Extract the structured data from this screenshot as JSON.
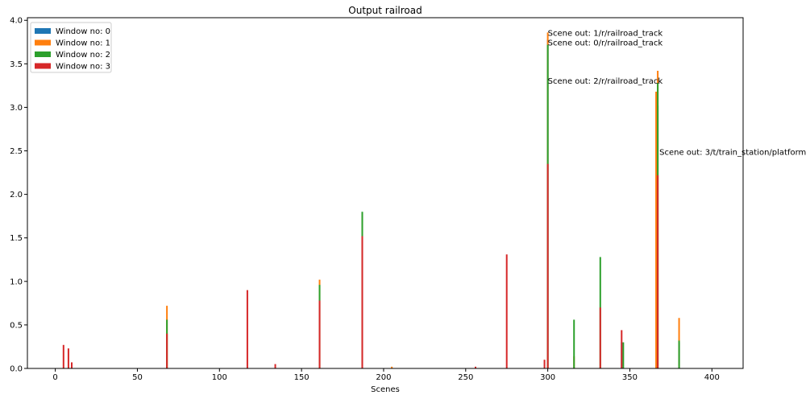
{
  "chart_data": {
    "type": "bar",
    "stacked": false,
    "title": "Output railroad",
    "xlabel": "Scenes",
    "ylabel": "",
    "xlim": [
      -17,
      419
    ],
    "ylim": [
      0,
      4.03
    ],
    "xticks": [
      0,
      50,
      100,
      150,
      200,
      250,
      300,
      350,
      400
    ],
    "yticks": [
      0.0,
      0.5,
      1.0,
      1.5,
      2.0,
      2.5,
      3.0,
      3.5,
      4.0
    ],
    "ytick_labels": [
      "0.0",
      "0.5",
      "1.0",
      "1.5",
      "2.0",
      "2.5",
      "3.0",
      "3.5",
      "4.0"
    ],
    "legend_position": "upper-left",
    "grid": false,
    "series": [
      {
        "name": "Window no: 0",
        "color": "#1f77b4",
        "points": [
          [
            300,
            3.78
          ],
          [
            367,
            3.02
          ],
          [
            345,
            0.3
          ],
          [
            380,
            0.3
          ]
        ]
      },
      {
        "name": "Window no: 1",
        "color": "#ff7f0e",
        "points": [
          [
            68,
            0.72
          ],
          [
            161,
            1.02
          ],
          [
            205,
            0.02
          ],
          [
            300,
            3.86
          ],
          [
            367,
            3.42
          ],
          [
            366,
            3.18
          ],
          [
            380,
            0.58
          ],
          [
            316,
            0.14
          ],
          [
            187,
            1.78
          ]
        ]
      },
      {
        "name": "Window no: 2",
        "color": "#2ca02c",
        "points": [
          [
            68,
            0.56
          ],
          [
            161,
            0.96
          ],
          [
            187,
            1.8
          ],
          [
            300,
            3.72
          ],
          [
            316,
            0.56
          ],
          [
            332,
            1.28
          ],
          [
            346,
            0.3
          ],
          [
            367,
            3.28
          ],
          [
            380,
            0.32
          ]
        ]
      },
      {
        "name": "Window no: 3",
        "color": "#d62728",
        "points": [
          [
            5,
            0.27
          ],
          [
            8,
            0.23
          ],
          [
            10,
            0.07
          ],
          [
            68,
            0.4
          ],
          [
            117,
            0.9
          ],
          [
            134,
            0.05
          ],
          [
            161,
            0.78
          ],
          [
            187,
            1.52
          ],
          [
            256,
            0.02
          ],
          [
            275,
            1.31
          ],
          [
            298,
            0.1
          ],
          [
            300,
            2.35
          ],
          [
            332,
            0.7
          ],
          [
            345,
            0.44
          ],
          [
            367,
            2.22
          ]
        ]
      }
    ],
    "annotations": [
      {
        "text": "Scene out: 1/r/railroad_track",
        "x": 300,
        "y": 3.86
      },
      {
        "text": "Scene out: 0/r/railroad_track",
        "x": 300,
        "y": 3.75
      },
      {
        "text": "Scene out: 2/r/railroad_track",
        "x": 300,
        "y": 3.31
      },
      {
        "text": "Scene out: 3/t/train_station/platform",
        "x": 368,
        "y": 2.49
      }
    ]
  }
}
